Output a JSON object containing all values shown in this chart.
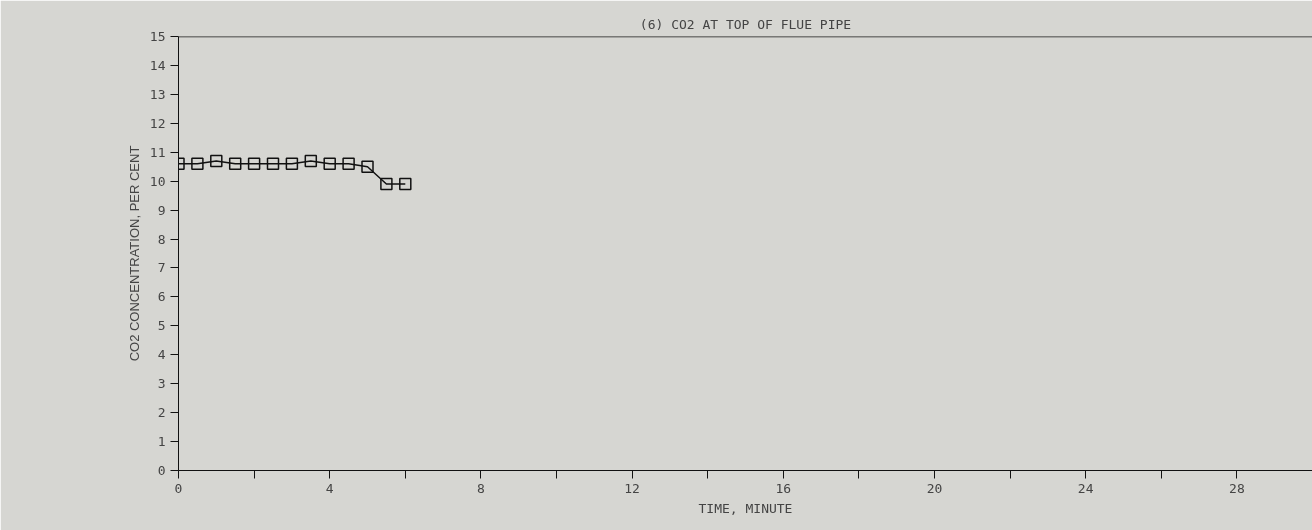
{
  "chart_data": {
    "type": "line",
    "title": "(6) CO2 AT TOP OF FLUE PIPE",
    "xlabel": "TIME, MINUTE",
    "ylabel": "CO2 CONCENTRATION, PER CENT",
    "x": [
      0,
      0.5,
      1,
      1.5,
      2,
      2.5,
      3,
      3.5,
      4,
      4.5,
      5,
      5.5,
      6
    ],
    "series": [
      {
        "color": "#111111",
        "values": [
          10.6,
          10.6,
          10.7,
          10.6,
          10.6,
          10.6,
          10.6,
          10.7,
          10.6,
          10.6,
          10.5,
          9.9,
          9.9
        ]
      }
    ],
    "xlim": [
      0,
      30
    ],
    "ylim": [
      0,
      15
    ],
    "xticks": [
      0,
      {
        "value": 2,
        "label": null
      },
      4,
      {
        "value": 6,
        "label": null
      },
      8,
      {
        "value": 10,
        "label": null
      },
      12,
      {
        "value": 14,
        "label": null
      },
      16,
      {
        "value": 18,
        "label": null
      },
      20,
      {
        "value": 22,
        "label": null
      },
      24,
      {
        "value": 26,
        "label": null
      },
      28
    ],
    "yticks": [
      0,
      1,
      2,
      3,
      4,
      5,
      6,
      7,
      8,
      9,
      10,
      11,
      12,
      13,
      14,
      15
    ],
    "marker": "square",
    "line_style": "solid",
    "grid": false
  }
}
